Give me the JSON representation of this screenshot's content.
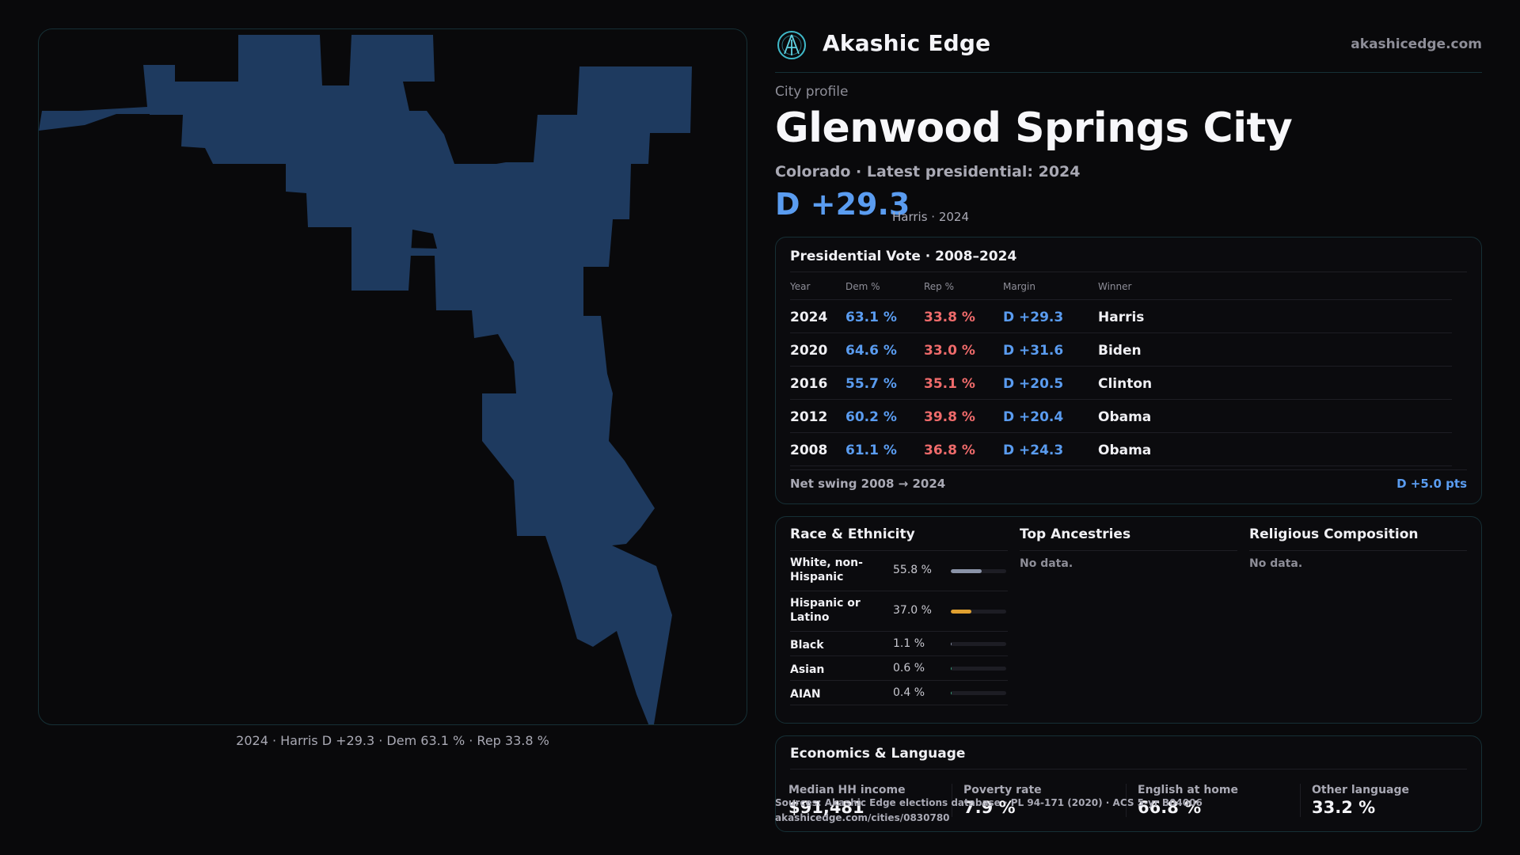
{
  "map": {
    "fill_color": "#1e3a5f",
    "caption": "2024 · Harris D +29.3 · Dem 63.1 % · Rep 33.8 %"
  },
  "brand": {
    "name": "Akashic Edge",
    "url": "akashicedge.com",
    "logo_icon": "akashic-edge-logo-icon"
  },
  "profile": {
    "kicker": "City profile",
    "title": "Glenwood Springs City",
    "subtitle": "Colorado · Latest presidential: 2024",
    "margin": "D +29.3",
    "margin_note": "Harris · 2024"
  },
  "vote": {
    "title": "Presidential Vote · 2008–2024",
    "headers": {
      "year": "Year",
      "dem": "Dem %",
      "rep": "Rep %",
      "margin": "Margin",
      "winner": "Winner"
    },
    "rows": [
      {
        "year": "2024",
        "dem": "63.1 %",
        "rep": "33.8 %",
        "margin": "D +29.3",
        "winner": "Harris"
      },
      {
        "year": "2020",
        "dem": "64.6 %",
        "rep": "33.0 %",
        "margin": "D +31.6",
        "winner": "Biden"
      },
      {
        "year": "2016",
        "dem": "55.7 %",
        "rep": "35.1 %",
        "margin": "D +20.5",
        "winner": "Clinton"
      },
      {
        "year": "2012",
        "dem": "60.2 %",
        "rep": "39.8 %",
        "margin": "D +20.4",
        "winner": "Obama"
      },
      {
        "year": "2008",
        "dem": "61.1 %",
        "rep": "36.8 %",
        "margin": "D +24.3",
        "winner": "Obama"
      }
    ],
    "swing_label": "Net swing 2008 → 2024",
    "swing_value": "D +5.0 pts",
    "colors": {
      "dem": "#5a9cf0",
      "rep": "#ef6b6b"
    }
  },
  "demographics": {
    "race": {
      "title": "Race & Ethnicity",
      "rows": [
        {
          "label": "White, non-Hispanic",
          "pct": "55.8 %",
          "value": 55.8,
          "color": "#8a93a8"
        },
        {
          "label": "Hispanic or Latino",
          "pct": "37.0 %",
          "value": 37.0,
          "color": "#e0a030"
        },
        {
          "label": "Black",
          "pct": "1.1 %",
          "value": 1.1,
          "color": "#8a93a8"
        },
        {
          "label": "Asian",
          "pct": "0.6 %",
          "value": 0.6,
          "color": "#3aa07a"
        },
        {
          "label": "AIAN",
          "pct": "0.4 %",
          "value": 0.4,
          "color": "#3aa07a"
        }
      ]
    },
    "ancestries": {
      "title": "Top Ancestries",
      "empty": "No data."
    },
    "religion": {
      "title": "Religious Composition",
      "empty": "No data."
    }
  },
  "economics": {
    "title": "Economics & Language",
    "stats": [
      {
        "label": "Median HH income",
        "value": "$91,481"
      },
      {
        "label": "Poverty rate",
        "value": "7.9 %"
      },
      {
        "label": "English at home",
        "value": "66.8 %"
      },
      {
        "label": "Other language",
        "value": "33.2 %"
      }
    ]
  },
  "source": {
    "line1": "Sources: Akashic Edge elections database · PL 94-171 (2020) · ACS 5-yr B04006",
    "line2": "akashicedge.com/cities/0830780"
  }
}
